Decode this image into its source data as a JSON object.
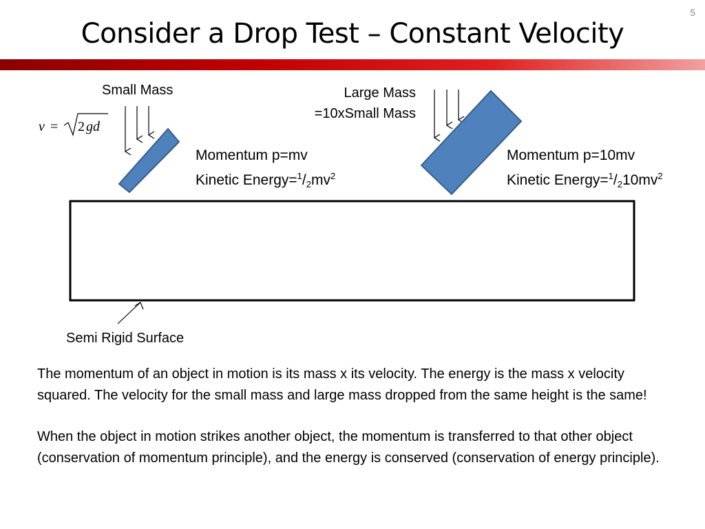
{
  "slide": {
    "number": "5",
    "title": "Consider a Drop Test – Constant Velocity"
  },
  "formula": {
    "text": "v = √2gd"
  },
  "small_mass": {
    "label": "Small Mass",
    "momentum": "Momentum p=mv",
    "ke_prefix": "Kinetic Energy=",
    "ke_num": "1",
    "ke_slash": "/",
    "ke_den": "2",
    "ke_rest": "mv",
    "ke_exp": "2"
  },
  "large_mass": {
    "label_line1": "Large Mass",
    "label_line2": "=10xSmall Mass",
    "momentum": "Momentum p=10mv",
    "ke_prefix": "Kinetic Energy=",
    "ke_num": "1",
    "ke_slash": "/",
    "ke_den": "2",
    "ke_rest": "10mv",
    "ke_exp": "2"
  },
  "surface": {
    "label": "Semi Rigid Surface"
  },
  "body_text": {
    "paragraph1": "The momentum of an object in motion is its mass x its velocity. The energy is the mass x velocity squared. The velocity for the small mass and large mass dropped from the same height is the same!",
    "paragraph2": "When the object in motion strikes another object, the momentum is transferred to that other object (conservation of momentum principle), and the energy is conserved (conservation of energy principle)."
  },
  "colors": {
    "mass_fill": "#4f81bd",
    "mass_stroke": "#385d8a",
    "accent_bar": "#c00000"
  }
}
